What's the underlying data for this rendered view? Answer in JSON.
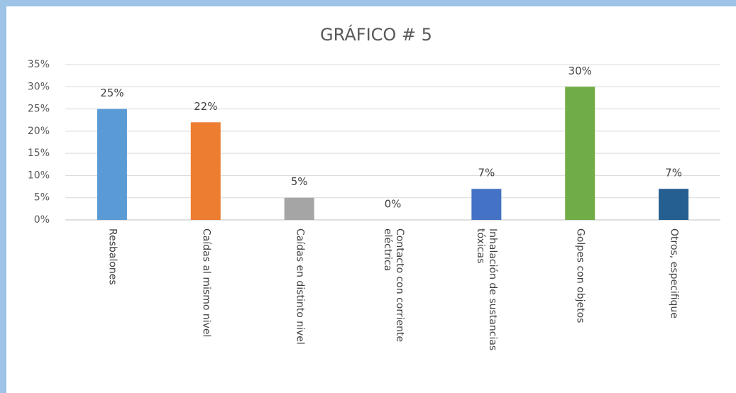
{
  "chart_data": {
    "type": "bar",
    "title": "GRÁFICO # 5",
    "categories": [
      "Resbalones",
      "Caídas al mismo nivel",
      "Caídas en distinto nivel",
      "Contacto con corriente eléctrica",
      "Inhalación de sustancias tóxicas",
      "Golpes con objetos",
      "Otros, especifique"
    ],
    "values": [
      25,
      22,
      5,
      0,
      7,
      30,
      7
    ],
    "value_labels": [
      "25%",
      "22%",
      "5%",
      "0%",
      "7%",
      "30%",
      "7%"
    ],
    "colors": [
      "#5b9bd5",
      "#ed7d31",
      "#a5a5a5",
      "#ffc000",
      "#4472c4",
      "#70ad47",
      "#255e91"
    ],
    "ylim": [
      0,
      35
    ],
    "yticks": [
      {
        "value": 0,
        "label": "0%"
      },
      {
        "value": 5,
        "label": "5%"
      },
      {
        "value": 10,
        "label": "10%"
      },
      {
        "value": 15,
        "label": "15%"
      },
      {
        "value": 20,
        "label": "20%"
      },
      {
        "value": 25,
        "label": "25%"
      },
      {
        "value": 30,
        "label": "30%"
      },
      {
        "value": 35,
        "label": "35%"
      }
    ],
    "grid": true
  }
}
